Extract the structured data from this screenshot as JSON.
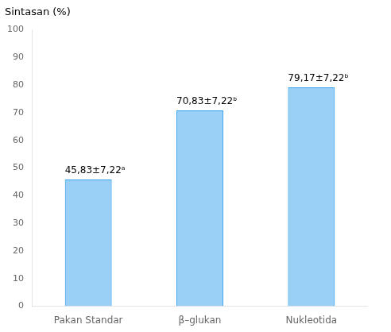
{
  "chart_data": {
    "type": "bar",
    "ylabel": "Sintasan (%)",
    "categories": [
      "Pakan Standar",
      "β–glukan",
      "Nukleotida"
    ],
    "values": [
      45.83,
      70.83,
      79.17
    ],
    "value_labels": [
      "45,83±7,22ᵃ",
      "70,83±7,22ᵇ",
      "79,17±7,22ᵇ"
    ],
    "data_labels": true,
    "ylim": [
      0,
      100
    ],
    "yticks": [
      0,
      10,
      20,
      30,
      40,
      50,
      60,
      70,
      80,
      90,
      100
    ],
    "grid": false
  }
}
